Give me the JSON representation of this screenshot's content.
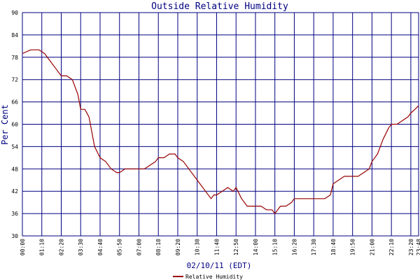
{
  "chart_data": {
    "type": "line",
    "title": "Outside Relative Humidity",
    "ylabel": "Per Cent",
    "xlabel": "02/10/11 (EDT)",
    "ylim": [
      30,
      90
    ],
    "y_ticks": [
      "30",
      "36",
      "42",
      "48",
      "54",
      "60",
      "66",
      "72",
      "78",
      "84",
      "90"
    ],
    "x_ticks": [
      "00:00",
      "01:10",
      "02:20",
      "03:30",
      "04:40",
      "05:50",
      "07:00",
      "08:10",
      "09:20",
      "10:30",
      "11:40",
      "12:50",
      "14:00",
      "15:10",
      "16:20",
      "17:30",
      "18:40",
      "19:50",
      "21:00",
      "22:10",
      "23:20",
      "23:48"
    ],
    "grid": true,
    "legend_position": "bottom-center",
    "line_color": "#990000",
    "grid_color": "#000080",
    "series": [
      {
        "name": "Relative Humidity",
        "x": [
          "00:00",
          "00:30",
          "01:00",
          "01:20",
          "01:40",
          "02:00",
          "02:20",
          "02:40",
          "03:00",
          "03:20",
          "03:30",
          "03:45",
          "04:00",
          "04:10",
          "04:20",
          "04:40",
          "05:00",
          "05:20",
          "05:40",
          "05:50",
          "06:10",
          "06:30",
          "06:50",
          "07:00",
          "07:20",
          "07:40",
          "08:00",
          "08:10",
          "08:30",
          "08:50",
          "09:10",
          "09:20",
          "09:40",
          "10:00",
          "10:20",
          "10:40",
          "11:00",
          "11:20",
          "11:30",
          "11:40",
          "12:00",
          "12:20",
          "12:40",
          "12:50",
          "13:10",
          "13:30",
          "13:50",
          "14:00",
          "14:20",
          "14:40",
          "15:00",
          "15:10",
          "15:30",
          "15:50",
          "16:10",
          "16:20",
          "16:40",
          "17:00",
          "17:20",
          "17:30",
          "17:50",
          "18:10",
          "18:30",
          "18:40",
          "19:00",
          "19:20",
          "19:40",
          "19:50",
          "20:10",
          "20:30",
          "20:50",
          "21:00",
          "21:20",
          "21:40",
          "22:00",
          "22:10",
          "22:30",
          "22:50",
          "23:10",
          "23:20",
          "23:35",
          "23:48"
        ],
        "values": [
          79,
          80,
          80,
          79,
          77,
          75,
          73,
          73,
          72,
          68,
          64,
          64,
          62,
          58,
          54,
          51,
          50,
          48,
          47,
          47,
          48,
          48,
          48,
          48,
          48,
          49,
          50,
          51,
          51,
          52,
          52,
          51,
          50,
          48,
          46,
          44,
          42,
          40,
          41,
          41,
          42,
          43,
          42,
          43,
          40,
          38,
          38,
          38,
          38,
          37,
          37,
          36,
          38,
          38,
          39,
          40,
          40,
          40,
          40,
          40,
          40,
          40,
          41,
          44,
          45,
          46,
          46,
          46,
          46,
          47,
          48,
          50,
          52,
          56,
          59,
          60,
          60,
          61,
          62,
          63,
          64,
          65
        ]
      }
    ]
  }
}
